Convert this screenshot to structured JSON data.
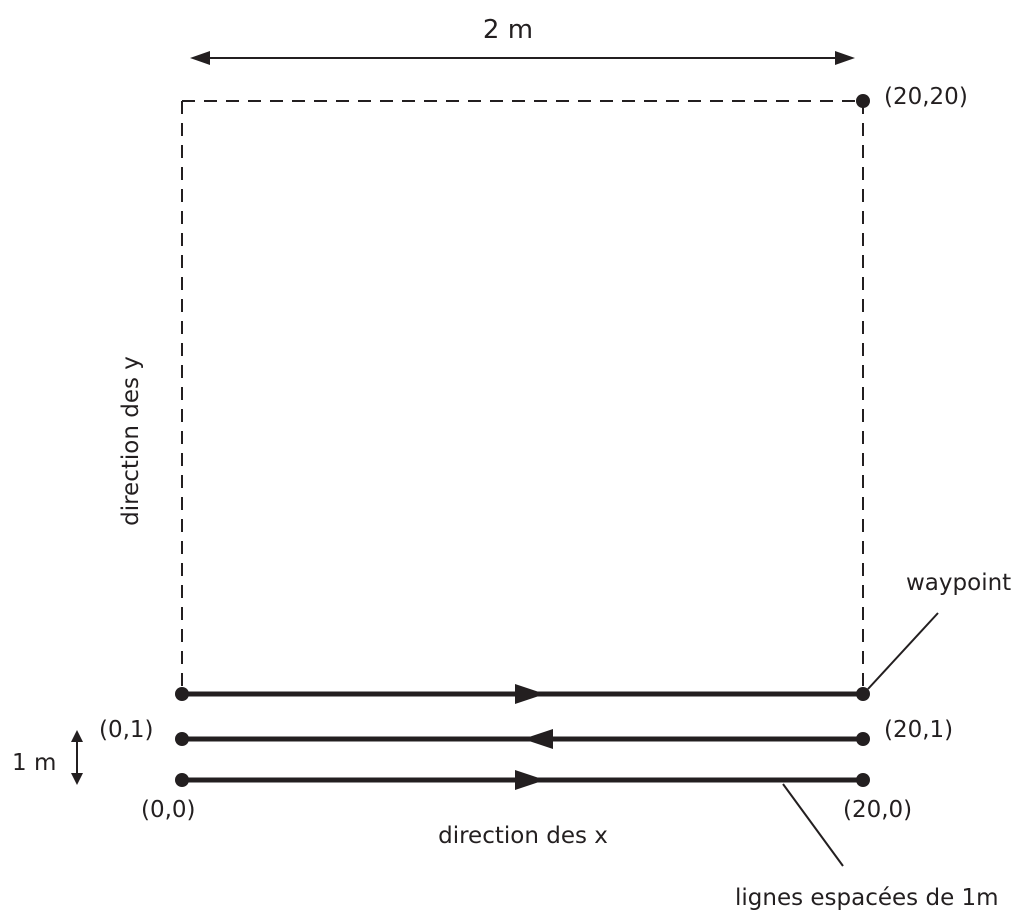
{
  "labels": {
    "width_dimension": "2 m",
    "corner_top_right": "(20,20)",
    "y_direction": "direction des y",
    "waypoint": "waypoint",
    "point_0_1": "(0,1)",
    "point_20_1": "(20,1)",
    "spacing_dimension": "1 m",
    "origin": "(0,0)",
    "point_20_0": "(20,0)",
    "x_direction": "direction des x",
    "line_spacing": "lignes espacées de 1m"
  },
  "paths": [
    {
      "from": "(0,0)",
      "to": "(20,0)",
      "direction": "right"
    },
    {
      "from": "(20,1)",
      "to": "(0,1)",
      "direction": "left"
    },
    {
      "from": "(0,2)",
      "to": "(20,2)",
      "direction": "right"
    }
  ],
  "colors": {
    "ink": "#231f20",
    "background": "#ffffff"
  }
}
